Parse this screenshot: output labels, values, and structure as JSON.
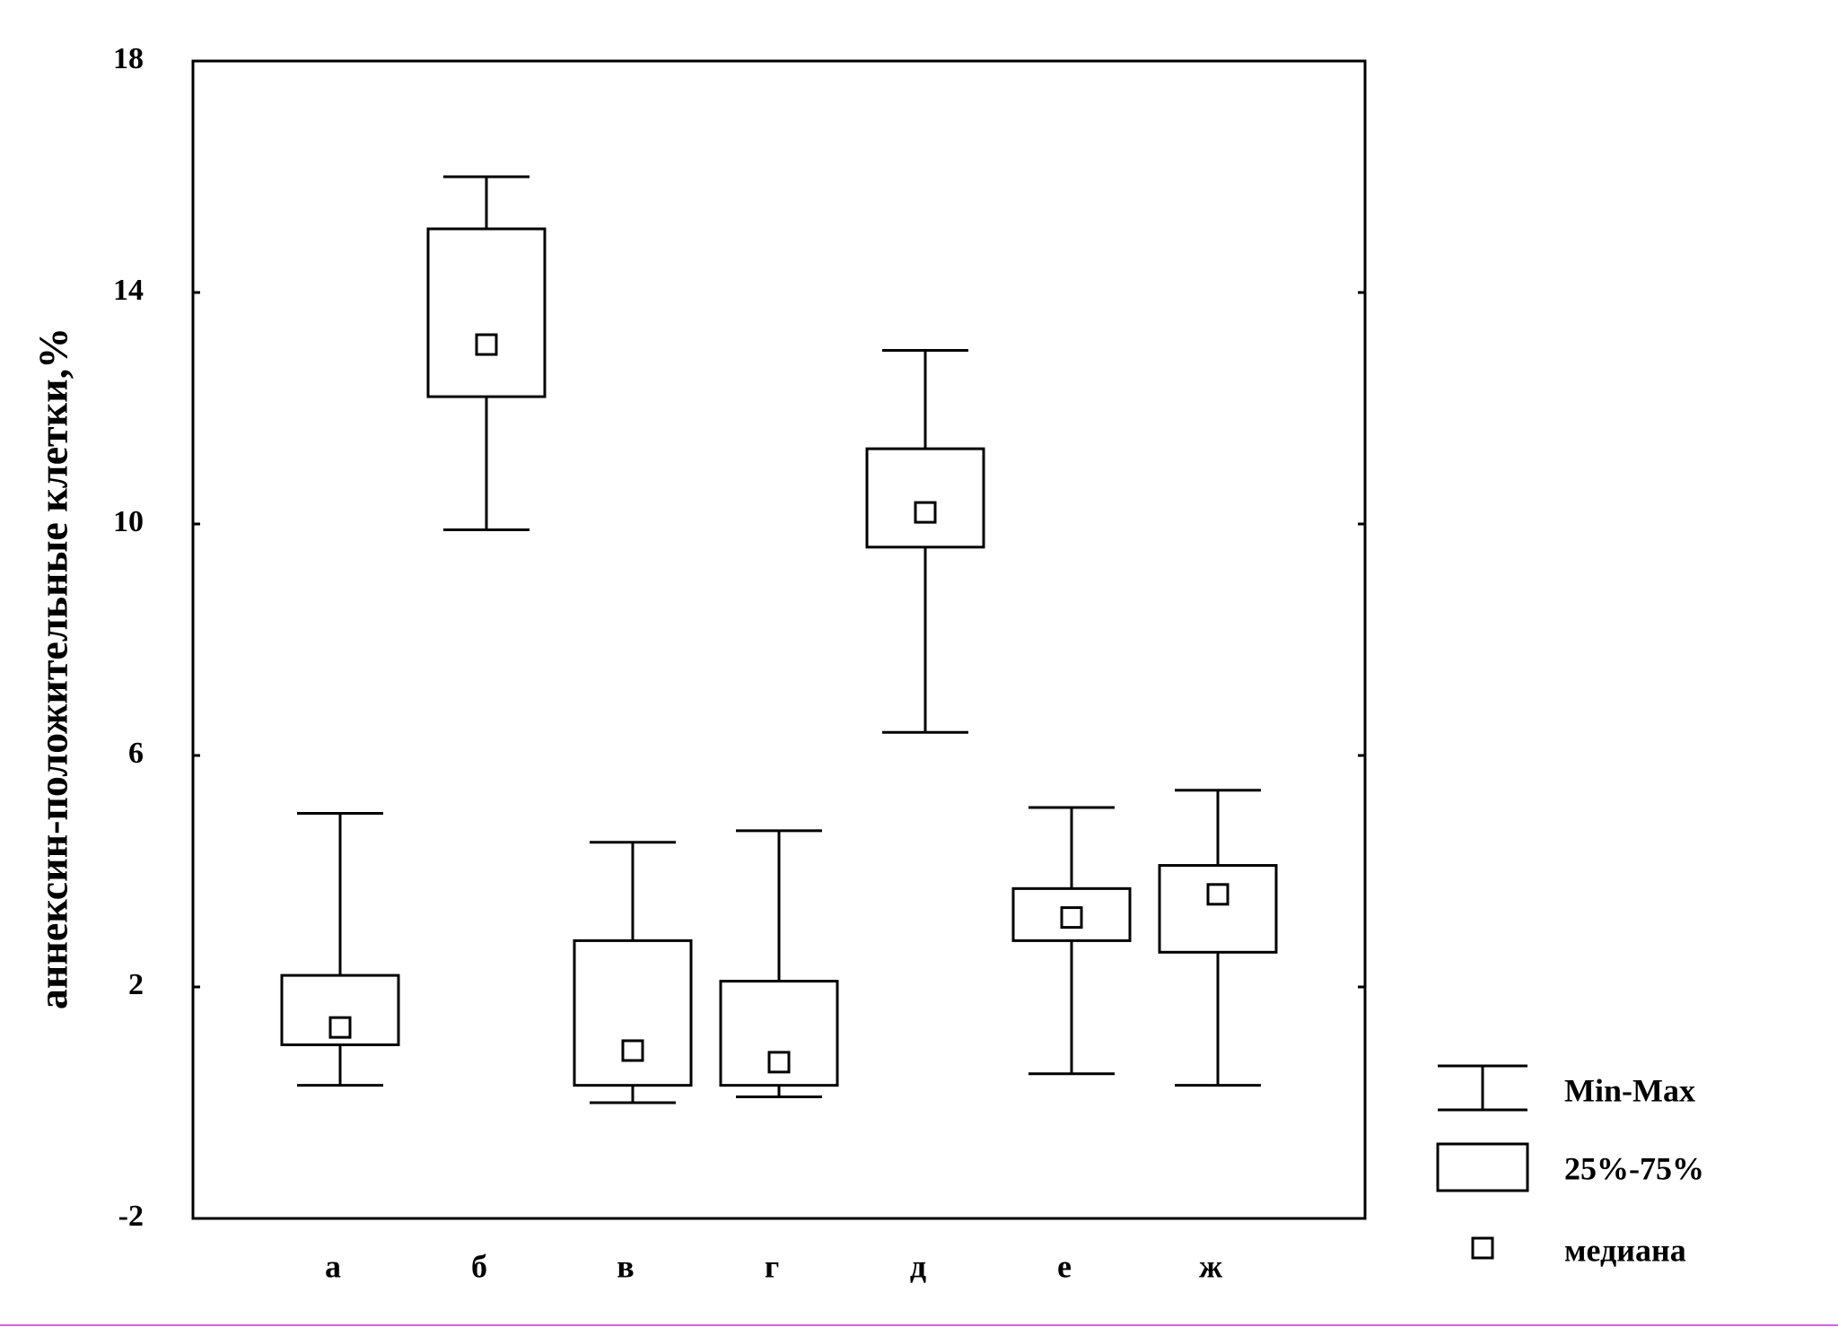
{
  "chart_data": {
    "type": "box",
    "y_label": "аннексин-положительные клетки,%",
    "categories": [
      "а",
      "б",
      "в",
      "г",
      "д",
      "е",
      "ж"
    ],
    "min": [
      0.3,
      9.9,
      0.0,
      0.1,
      6.4,
      0.5,
      0.3
    ],
    "q1": [
      1.0,
      12.2,
      0.3,
      0.3,
      9.6,
      2.8,
      2.6
    ],
    "median": [
      1.3,
      13.1,
      0.9,
      0.7,
      10.2,
      3.2,
      3.6
    ],
    "q3": [
      2.2,
      15.1,
      2.8,
      2.1,
      11.3,
      3.7,
      4.1
    ],
    "max": [
      5.0,
      16.0,
      4.5,
      4.7,
      13.0,
      5.1,
      5.4
    ],
    "legend_labels": [
      "Min-Max",
      "25%-75%",
      "медиана"
    ],
    "color": "#000000",
    "ylim": [
      -2,
      18
    ],
    "yticks": [
      -2,
      2,
      6,
      10,
      14,
      18
    ]
  }
}
